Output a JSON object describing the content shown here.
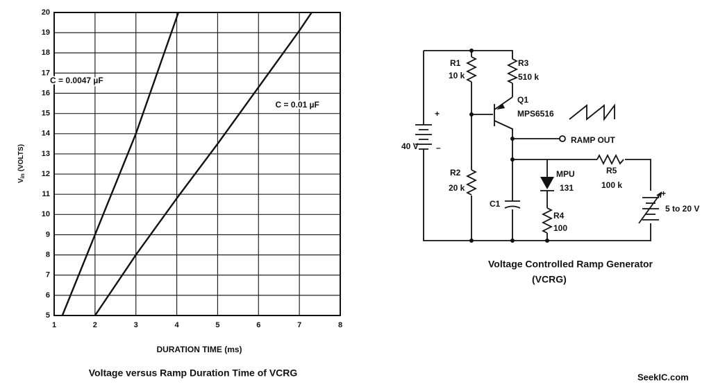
{
  "chart_data": {
    "type": "line",
    "y_label": "V",
    "y_label_sub": "in",
    "y_label_unit": "(VOLTS)",
    "x_label": "DURATION TIME (ms)",
    "caption": "Voltage versus Ramp Duration Time of VCRG",
    "xlim": [
      1,
      8
    ],
    "xticks": [
      1,
      2,
      3,
      4,
      5,
      6,
      7,
      8
    ],
    "ylim": [
      5,
      20
    ],
    "yticks": [
      5,
      6,
      7,
      8,
      9,
      10,
      11,
      12,
      13,
      14,
      15,
      16,
      17,
      18,
      19,
      20
    ],
    "grid": true,
    "series": [
      {
        "name": "C = 0.0047 µF",
        "color": "#111111",
        "x": [
          1.2,
          2,
          3,
          4.04
        ],
        "values": [
          5,
          9,
          14,
          20
        ]
      },
      {
        "name": "C = 0.01 µF",
        "color": "#111111",
        "x": [
          2,
          3,
          4,
          5,
          6,
          7,
          7.3
        ],
        "values": [
          5,
          8,
          10.8,
          13.5,
          16.3,
          19.1,
          20
        ]
      }
    ]
  },
  "diagram": {
    "title": "Voltage Controlled Ramp Generator",
    "title_line2": "(VCRG)",
    "labels": {
      "r1": "R1",
      "r1_value": "10 k",
      "r3": "R3",
      "r3_value": "510 k",
      "q1": "Q1",
      "q1_part": "MPS6516",
      "battery_plus": "+",
      "battery": "40 V",
      "battery_minus": "–",
      "ramp_out": "RAMP OUT",
      "mpu": "MPU",
      "mpu_value": "131",
      "r5": "R5",
      "r5_value": "100 k",
      "r2": "R2",
      "r2_value": "20 k",
      "c1": "C1",
      "r4": "R4",
      "r4_value": "100",
      "source_plus": "+",
      "source": "5 to 20 V"
    }
  },
  "watermark": "SeekIC.com"
}
